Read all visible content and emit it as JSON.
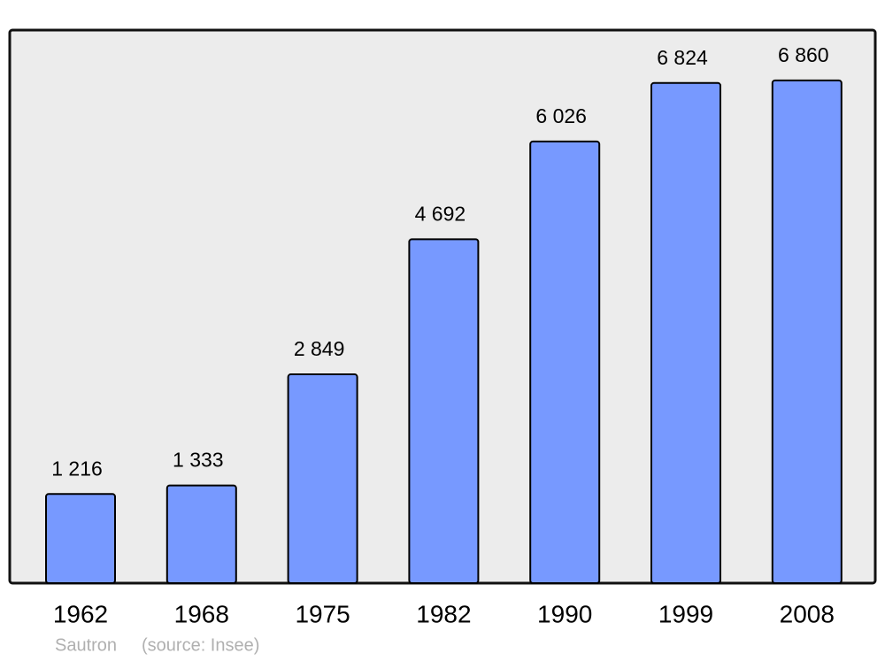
{
  "chart_data": {
    "type": "bar",
    "title": "Sautron",
    "source": "(source: Insee)",
    "categories": [
      "1962",
      "1968",
      "1975",
      "1982",
      "1990",
      "1999",
      "2008"
    ],
    "values": [
      1216,
      1333,
      2849,
      4692,
      6026,
      6824,
      6860
    ],
    "value_labels": [
      "1 216",
      "1 333",
      "2 849",
      "4 692",
      "6 026",
      "6 824",
      "6 860"
    ],
    "color": "#7799ff"
  }
}
